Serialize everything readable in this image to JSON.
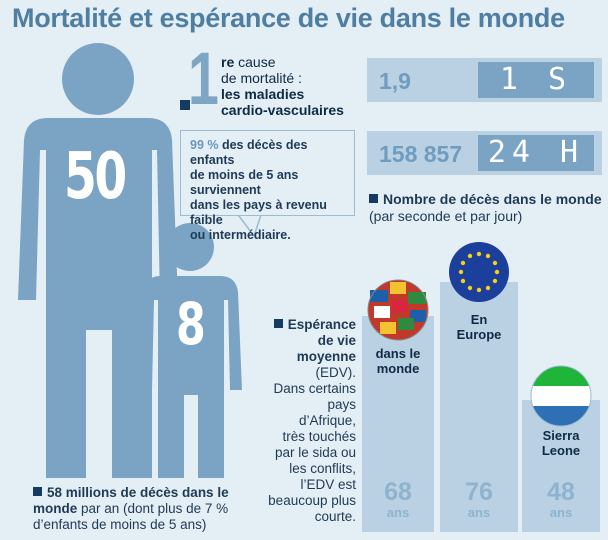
{
  "title": "Mortalité et espérance de vie dans le monde",
  "figures": {
    "adult_number": "50",
    "child_number": "8"
  },
  "cause": {
    "number": "1",
    "suffix": "re",
    "line1": "cause",
    "line2": "de mortalité :",
    "line3": "les maladies",
    "line4": "cardio-vasculaires"
  },
  "bubble": {
    "percent": "99 %",
    "line1": " des décès des enfants",
    "line2": "de moins de 5 ans surviennent",
    "line3": "dans les pays à revenu faible",
    "line4": "ou intermédiaire."
  },
  "counters": [
    {
      "value": "1,9",
      "display": "1 S"
    },
    {
      "value": "158 857",
      "display": "24 H"
    }
  ],
  "counter_caption": {
    "bold": "Nombre de décès dans le monde",
    "normal": "(par seconde et par jour)"
  },
  "edv": {
    "bold_lines": [
      "Espérance",
      "de vie",
      "moyenne"
    ],
    "lines": [
      "(EDV).",
      "Dans certains",
      "pays",
      "d’Afrique,",
      "très touchés",
      "par le sida ou",
      "les conflits,",
      "l’EDV est",
      "beaucoup plus",
      "courte."
    ]
  },
  "life_expectancy": [
    {
      "label_lines": [
        "dans le",
        "monde"
      ],
      "value": 68,
      "unit": "ans",
      "icon": "globe-flags-icon"
    },
    {
      "label_lines": [
        "En",
        "Europe"
      ],
      "value": 76,
      "unit": "ans",
      "icon": "eu-flag-icon"
    },
    {
      "label_lines": [
        "Sierra",
        "Leone"
      ],
      "value": 48,
      "unit": "ans",
      "icon": "sierra-leone-flag-icon"
    }
  ],
  "deaths_caption": {
    "bold1": "58 millions de décès dans le",
    "bold2": "monde",
    "normal1": " par an (dont plus de 7 %",
    "normal2": "d’enfants de moins de 5 ans)"
  },
  "colors": {
    "title": "#4f7ea3",
    "silhouette": "#7ba4c4",
    "panel": "#b9d1e2",
    "dark": "#163b63",
    "background": "#e4eef5"
  }
}
